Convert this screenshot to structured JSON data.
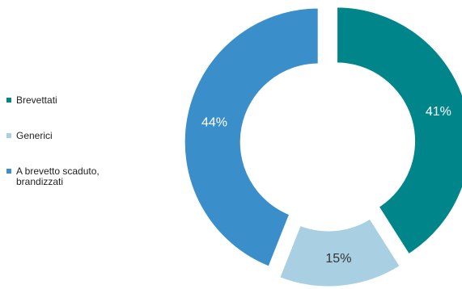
{
  "chart_data": {
    "type": "pie",
    "donut": true,
    "exploded": true,
    "start": "top, clockwise",
    "legend_position": "left",
    "categories": [
      "Brevettati",
      "Generici",
      "A brevetto scaduto, brandizzati"
    ],
    "values": [
      41,
      15,
      44
    ],
    "value_labels": [
      "41%",
      "15%",
      "44%"
    ],
    "colors": [
      "#00868a",
      "#a8cfe2",
      "#3a8fcb"
    ],
    "label_colors": [
      "#ffffff",
      "#333333",
      "#ffffff"
    ]
  },
  "legend": {
    "items": [
      {
        "label": "Brevettati",
        "color": "#00868a"
      },
      {
        "label": "Generici",
        "color": "#a8cfe2"
      },
      {
        "label": "A brevetto scaduto, brandizzati",
        "color": "#3a8fcb"
      }
    ]
  }
}
